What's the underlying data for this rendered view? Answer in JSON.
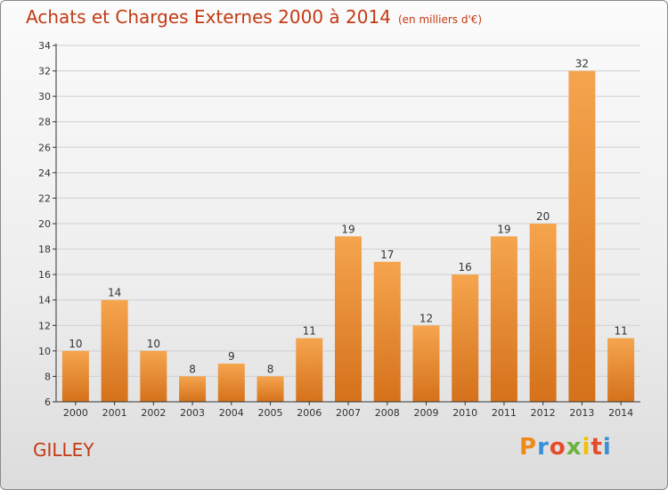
{
  "header": {
    "title": "Achats et Charges Externes 2000 à 2014",
    "subtitle": "(en milliers d'€)"
  },
  "footer": {
    "place": "GILLEY",
    "logo_text": "Proxiti",
    "logo_colors": [
      "#f08a1c",
      "#3b8fd6",
      "#e64b2a",
      "#6cb33f",
      "#f2c200",
      "#e64b2a",
      "#3b8fd6"
    ]
  },
  "colors": {
    "bar_light": "#f5a54e",
    "bar_dark": "#d5711b",
    "axis": "#333333",
    "grid": "#cfcfcf",
    "title": "#c23a14"
  },
  "chart_data": {
    "type": "bar",
    "title": "Achats et Charges Externes 2000 à 2014",
    "subtitle": "(en milliers d'€)",
    "xlabel": "",
    "ylabel": "",
    "categories": [
      "2000",
      "2001",
      "2002",
      "2003",
      "2004",
      "2005",
      "2006",
      "2007",
      "2008",
      "2009",
      "2010",
      "2011",
      "2012",
      "2013",
      "2014"
    ],
    "values": [
      10,
      14,
      10,
      8,
      9,
      8,
      11,
      19,
      17,
      12,
      16,
      19,
      20,
      32,
      11
    ],
    "ylim": [
      6,
      34
    ],
    "yticks": [
      6,
      8,
      10,
      12,
      14,
      16,
      18,
      20,
      22,
      24,
      26,
      28,
      30,
      32,
      34
    ],
    "grid": true
  }
}
